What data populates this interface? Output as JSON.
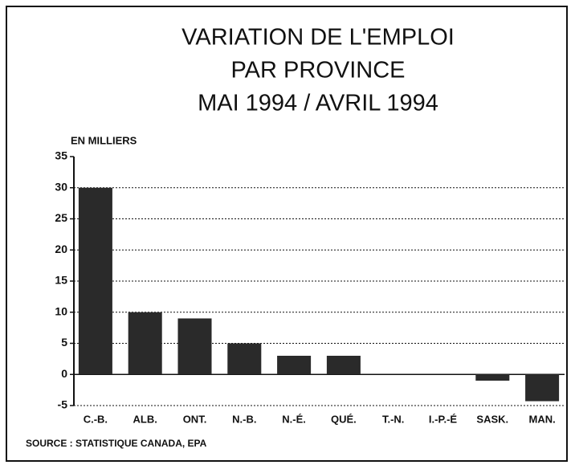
{
  "chart_data": {
    "type": "bar",
    "title": [
      "VARIATION DE L'EMPLOI",
      "PAR PROVINCE",
      "MAI 1994 / AVRIL 1994"
    ],
    "y_label": "EN MILLIERS",
    "source": "SOURCE : STATISTIQUE CANADA, EPA",
    "categories": [
      "C.-B.",
      "ALB.",
      "ONT.",
      "N.-B.",
      "N.-É.",
      "QUÉ.",
      "T.-N.",
      "I.-P.-É",
      "SASK.",
      "MAN."
    ],
    "values": [
      30,
      10,
      9,
      5,
      3,
      3,
      0,
      0,
      -1,
      -4.3
    ],
    "color": "#2a2a2a",
    "ylim": [
      -5,
      35
    ],
    "yticks": [
      -5,
      0,
      5,
      10,
      15,
      20,
      25,
      30,
      35
    ],
    "grid": true
  }
}
